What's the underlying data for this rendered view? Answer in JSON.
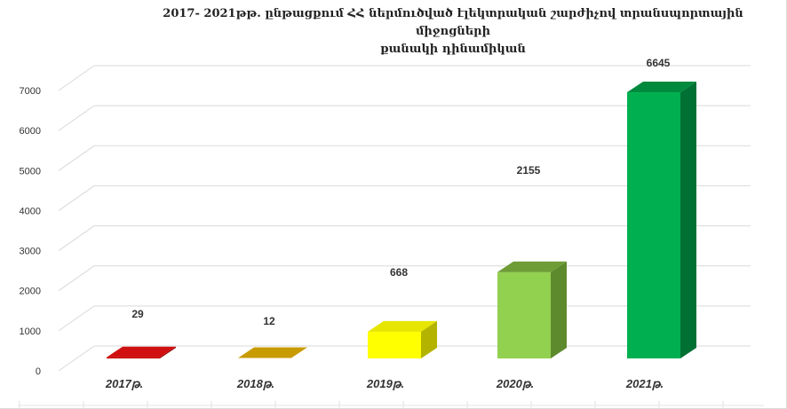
{
  "chart_data": {
    "type": "bar",
    "title_line1": "2017- 2021թթ. ընթացքում  ՀՀ ներմուծված էլեկտրական շարժիչով տրանսպորտային միջոցների",
    "title_line2": "քանակի  դինամիկան",
    "xlabel": "",
    "ylabel": "",
    "categories": [
      "2017թ.",
      "2018թ.",
      "2019թ.",
      "2020թ.",
      "2021թ."
    ],
    "values": [
      29,
      12,
      668,
      2155,
      6645
    ],
    "data_labels": [
      "29",
      "12",
      "668",
      "2155",
      "6645"
    ],
    "ylim": [
      0,
      7000
    ],
    "yticks": [
      0,
      1000,
      2000,
      3000,
      4000,
      5000,
      6000,
      7000
    ],
    "grid": true,
    "bar_colors": [
      {
        "front": "#c00000",
        "top": "#d01010",
        "side": "#900000"
      },
      {
        "front": "#c09000",
        "top": "#c89b00",
        "side": "#8f6b00"
      },
      {
        "front": "#ffff00",
        "top": "#e6e600",
        "side": "#b3b300"
      },
      {
        "front": "#92d050",
        "top": "#6e9c36",
        "side": "#5e8a2e"
      },
      {
        "front": "#00b050",
        "top": "#008a3e",
        "side": "#007033"
      }
    ]
  }
}
